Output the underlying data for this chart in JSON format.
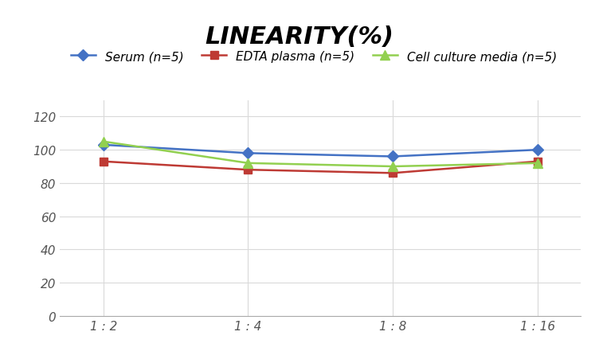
{
  "title": "LINEARITY(%)",
  "x_labels": [
    "1 : 2",
    "1 : 4",
    "1 : 8",
    "1 : 16"
  ],
  "x_positions": [
    0,
    1,
    2,
    3
  ],
  "series": [
    {
      "label": "Serum (n=5)",
      "values": [
        103,
        98,
        96,
        100
      ],
      "color": "#4472C4",
      "marker": "D",
      "marker_size": 7,
      "linewidth": 1.8
    },
    {
      "label": "EDTA plasma (n=5)",
      "values": [
        93,
        88,
        86,
        93
      ],
      "color": "#BE3A34",
      "marker": "s",
      "marker_size": 7,
      "linewidth": 1.8
    },
    {
      "label": "Cell culture media (n=5)",
      "values": [
        105,
        92,
        90,
        92
      ],
      "color": "#92D050",
      "marker": "^",
      "marker_size": 8,
      "linewidth": 1.8
    }
  ],
  "ylim": [
    0,
    130
  ],
  "yticks": [
    0,
    20,
    40,
    60,
    80,
    100,
    120
  ],
  "grid_color": "#D9D9D9",
  "background_color": "#FFFFFF",
  "title_fontsize": 22,
  "legend_fontsize": 11,
  "tick_fontsize": 11,
  "title_style": "italic",
  "title_weight": "bold"
}
